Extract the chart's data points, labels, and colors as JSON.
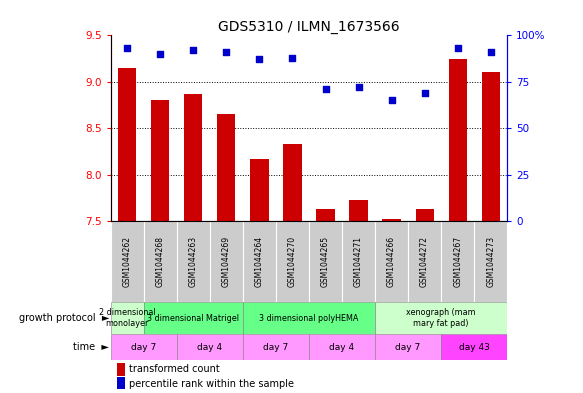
{
  "title": "GDS5310 / ILMN_1673566",
  "samples": [
    "GSM1044262",
    "GSM1044268",
    "GSM1044263",
    "GSM1044269",
    "GSM1044264",
    "GSM1044270",
    "GSM1044265",
    "GSM1044271",
    "GSM1044266",
    "GSM1044272",
    "GSM1044267",
    "GSM1044273"
  ],
  "red_values": [
    9.15,
    8.8,
    8.87,
    8.65,
    8.17,
    8.33,
    7.63,
    7.73,
    7.52,
    7.63,
    9.25,
    9.1
  ],
  "blue_values": [
    93,
    90,
    92,
    91,
    87,
    88,
    71,
    72,
    65,
    69,
    93,
    91
  ],
  "y_min": 7.5,
  "y_max": 9.5,
  "yticks_left": [
    7.5,
    8.0,
    8.5,
    9.0,
    9.5
  ],
  "yticks_right": [
    0,
    25,
    50,
    75,
    100
  ],
  "ytick_labels_right": [
    "0",
    "25",
    "50",
    "75",
    "100%"
  ],
  "bar_color": "#cc0000",
  "dot_color": "#0000cc",
  "bar_width": 0.55,
  "growth_groups": [
    {
      "label": "2 dimensional\nmonolayer",
      "start": 0,
      "end": 0,
      "color": "#ccffcc"
    },
    {
      "label": "3 dimensional Matrigel",
      "start": 1,
      "end": 3,
      "color": "#66ff88"
    },
    {
      "label": "3 dimensional polyHEMA",
      "start": 4,
      "end": 7,
      "color": "#66ff88"
    },
    {
      "label": "xenograph (mam\nmary fat pad)",
      "start": 8,
      "end": 11,
      "color": "#ccffcc"
    }
  ],
  "time_groups": [
    {
      "label": "day 7",
      "start": 0,
      "end": 1,
      "color": "#ff99ff"
    },
    {
      "label": "day 4",
      "start": 2,
      "end": 3,
      "color": "#ff99ff"
    },
    {
      "label": "day 7",
      "start": 4,
      "end": 5,
      "color": "#ff99ff"
    },
    {
      "label": "day 4",
      "start": 6,
      "end": 7,
      "color": "#ff99ff"
    },
    {
      "label": "day 7",
      "start": 8,
      "end": 9,
      "color": "#ff99ff"
    },
    {
      "label": "day 43",
      "start": 10,
      "end": 11,
      "color": "#ff44ff"
    }
  ],
  "sample_bg_color": "#cccccc",
  "legend_red_label": "transformed count",
  "legend_blue_label": "percentile rank within the sample",
  "growth_protocol_label": "growth protocol",
  "time_label": "time"
}
